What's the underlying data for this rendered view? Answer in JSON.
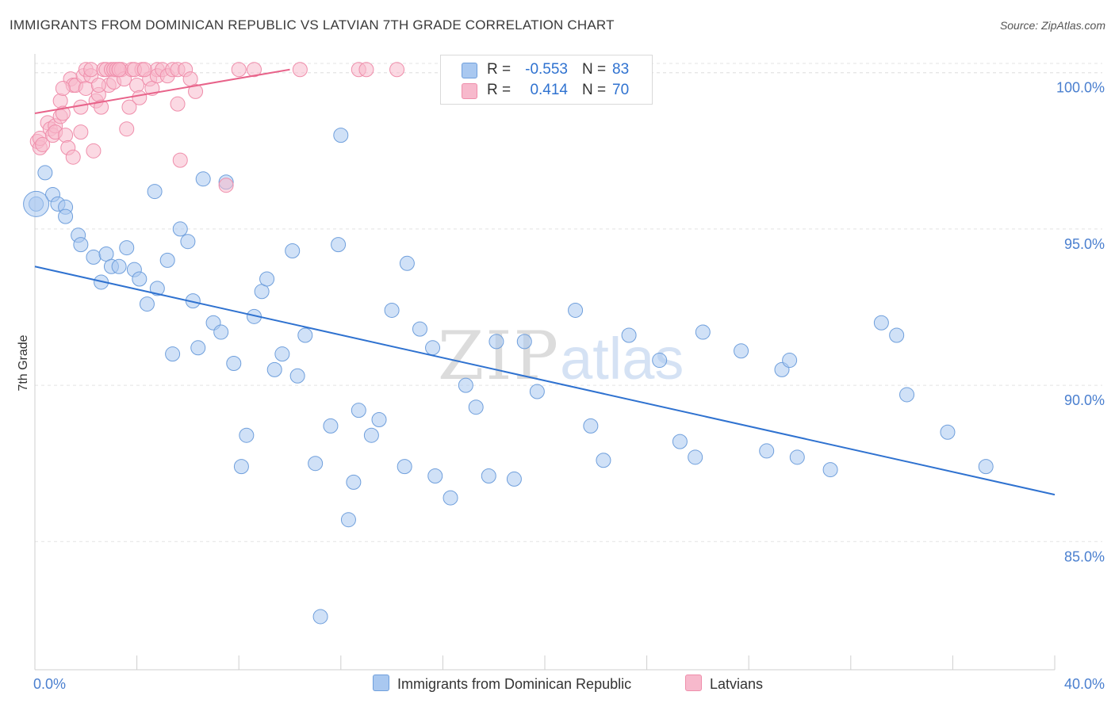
{
  "title": "IMMIGRANTS FROM DOMINICAN REPUBLIC VS LATVIAN 7TH GRADE CORRELATION CHART",
  "source": "Source: ZipAtlas.com",
  "watermark": {
    "zip": "ZIP",
    "atlas": "atlas"
  },
  "legend": {
    "rows": [
      {
        "r_label": "R =",
        "r_value": "-0.553",
        "n_label": "N =",
        "n_value": "83"
      },
      {
        "r_label": "R =",
        "r_value": "0.414",
        "n_label": "N =",
        "n_value": "70"
      }
    ]
  },
  "bottom_legend": [
    "Immigrants from Dominican Republic",
    "Latvians"
  ],
  "colors": {
    "blue_fill": "#a9c8f0",
    "blue_stroke": "#6f9fdc",
    "blue_line": "#2f72d0",
    "pink_fill": "#f7b9cc",
    "pink_stroke": "#ef8eab",
    "pink_line": "#e8638a",
    "axis_label": "#4a7fcf",
    "value_blue": "#2f72d0",
    "value_pink": "#e8638a"
  },
  "chart_data": {
    "type": "scatter",
    "title": "IMMIGRANTS FROM DOMINICAN REPUBLIC VS LATVIAN 7TH GRADE CORRELATION CHART",
    "xlabel": "",
    "ylabel": "7th Grade",
    "xlim": [
      0,
      40
    ],
    "ylim": [
      80.9,
      100.5
    ],
    "x_tick_labels": [
      "0.0%",
      "40.0%"
    ],
    "y_ticks": [
      85,
      90,
      95,
      100
    ],
    "y_tick_labels": [
      "85.0%",
      "90.0%",
      "95.0%",
      "100.0%"
    ],
    "grid": true,
    "legend_position": "top-center",
    "series": [
      {
        "name": "Immigrants from Dominican Republic",
        "color": "#a9c8f0",
        "trend": {
          "x": [
            0,
            40
          ],
          "y": [
            93.8,
            86.5
          ]
        },
        "points": [
          [
            0.05,
            95.8
          ],
          [
            0.4,
            96.8
          ],
          [
            0.7,
            96.1
          ],
          [
            0.9,
            95.8
          ],
          [
            1.2,
            95.7
          ],
          [
            1.2,
            95.4
          ],
          [
            1.7,
            94.8
          ],
          [
            1.8,
            94.5
          ],
          [
            2.3,
            94.1
          ],
          [
            2.6,
            93.3
          ],
          [
            2.8,
            94.2
          ],
          [
            3.0,
            93.8
          ],
          [
            3.3,
            93.8
          ],
          [
            3.6,
            94.4
          ],
          [
            3.9,
            93.7
          ],
          [
            4.1,
            93.4
          ],
          [
            4.4,
            92.6
          ],
          [
            4.7,
            96.2
          ],
          [
            4.8,
            93.1
          ],
          [
            5.2,
            94.0
          ],
          [
            5.4,
            91.0
          ],
          [
            5.7,
            95.0
          ],
          [
            6.0,
            94.6
          ],
          [
            6.2,
            92.7
          ],
          [
            6.4,
            91.2
          ],
          [
            6.6,
            96.6
          ],
          [
            7.0,
            92.0
          ],
          [
            7.3,
            91.7
          ],
          [
            7.5,
            96.5
          ],
          [
            7.8,
            90.7
          ],
          [
            8.1,
            87.4
          ],
          [
            8.3,
            88.4
          ],
          [
            8.6,
            92.2
          ],
          [
            8.9,
            93.0
          ],
          [
            9.1,
            93.4
          ],
          [
            9.4,
            90.5
          ],
          [
            9.7,
            91.0
          ],
          [
            10.1,
            94.3
          ],
          [
            10.3,
            90.3
          ],
          [
            10.6,
            91.6
          ],
          [
            11.0,
            87.5
          ],
          [
            11.6,
            88.7
          ],
          [
            11.2,
            82.6
          ],
          [
            11.9,
            94.5
          ],
          [
            12.0,
            98.0
          ],
          [
            12.3,
            85.7
          ],
          [
            12.7,
            89.2
          ],
          [
            12.5,
            86.9
          ],
          [
            13.2,
            88.4
          ],
          [
            13.5,
            88.9
          ],
          [
            14.0,
            92.4
          ],
          [
            14.6,
            93.9
          ],
          [
            14.5,
            87.4
          ],
          [
            15.1,
            91.8
          ],
          [
            15.6,
            91.2
          ],
          [
            15.7,
            87.1
          ],
          [
            16.3,
            86.4
          ],
          [
            16.9,
            90.0
          ],
          [
            17.3,
            89.3
          ],
          [
            17.8,
            87.1
          ],
          [
            18.1,
            91.4
          ],
          [
            18.8,
            87.0
          ],
          [
            19.2,
            91.4
          ],
          [
            19.7,
            89.8
          ],
          [
            21.2,
            92.4
          ],
          [
            21.8,
            88.7
          ],
          [
            22.3,
            87.6
          ],
          [
            23.3,
            91.6
          ],
          [
            24.5,
            90.8
          ],
          [
            25.3,
            88.2
          ],
          [
            25.9,
            87.7
          ],
          [
            26.2,
            91.7
          ],
          [
            27.7,
            91.1
          ],
          [
            28.7,
            87.9
          ],
          [
            29.3,
            90.5
          ],
          [
            29.6,
            90.8
          ],
          [
            29.9,
            87.7
          ],
          [
            31.2,
            87.3
          ],
          [
            33.2,
            92.0
          ],
          [
            33.8,
            91.6
          ],
          [
            34.2,
            89.7
          ],
          [
            35.8,
            88.5
          ],
          [
            37.3,
            87.4
          ]
        ]
      },
      {
        "name": "Latvians",
        "color": "#f7b9cc",
        "trend": {
          "x": [
            0,
            10
          ],
          "y": [
            98.7,
            100.1
          ]
        },
        "points": [
          [
            0.1,
            97.8
          ],
          [
            0.2,
            97.6
          ],
          [
            0.2,
            97.9
          ],
          [
            0.3,
            97.7
          ],
          [
            0.5,
            98.4
          ],
          [
            0.6,
            98.2
          ],
          [
            0.7,
            98.0
          ],
          [
            0.8,
            98.3
          ],
          [
            0.8,
            98.1
          ],
          [
            1.0,
            99.1
          ],
          [
            1.0,
            98.6
          ],
          [
            1.1,
            98.7
          ],
          [
            1.2,
            98.0
          ],
          [
            1.3,
            97.6
          ],
          [
            1.4,
            99.8
          ],
          [
            1.5,
            99.6
          ],
          [
            1.5,
            97.3
          ],
          [
            1.6,
            99.6
          ],
          [
            1.8,
            98.9
          ],
          [
            1.8,
            98.1
          ],
          [
            1.9,
            99.9
          ],
          [
            2.0,
            100.1
          ],
          [
            2.0,
            99.5
          ],
          [
            2.2,
            99.9
          ],
          [
            2.2,
            100.1
          ],
          [
            2.3,
            97.5
          ],
          [
            2.4,
            99.1
          ],
          [
            2.5,
            99.3
          ],
          [
            2.6,
            98.9
          ],
          [
            2.7,
            100.1
          ],
          [
            2.8,
            100.1
          ],
          [
            2.9,
            99.6
          ],
          [
            3.0,
            100.1
          ],
          [
            3.1,
            100.1
          ],
          [
            3.1,
            99.7
          ],
          [
            3.2,
            100.1
          ],
          [
            3.3,
            100.1
          ],
          [
            3.4,
            100.1
          ],
          [
            3.5,
            99.8
          ],
          [
            3.6,
            98.2
          ],
          [
            3.7,
            98.9
          ],
          [
            3.8,
            100.1
          ],
          [
            4.0,
            99.6
          ],
          [
            4.1,
            99.2
          ],
          [
            4.2,
            100.1
          ],
          [
            4.5,
            99.8
          ],
          [
            4.6,
            99.5
          ],
          [
            4.8,
            100.1
          ],
          [
            4.8,
            99.9
          ],
          [
            5.0,
            100.1
          ],
          [
            5.2,
            99.9
          ],
          [
            5.4,
            100.1
          ],
          [
            5.6,
            100.1
          ],
          [
            5.6,
            99.0
          ],
          [
            5.7,
            97.2
          ],
          [
            5.9,
            100.1
          ],
          [
            6.1,
            99.8
          ],
          [
            6.3,
            99.4
          ],
          [
            7.5,
            96.4
          ],
          [
            8.0,
            100.1
          ],
          [
            8.6,
            100.1
          ],
          [
            10.4,
            100.1
          ],
          [
            12.7,
            100.1
          ],
          [
            13.0,
            100.1
          ],
          [
            14.2,
            100.1
          ],
          [
            1.1,
            99.5
          ],
          [
            2.5,
            99.6
          ],
          [
            3.3,
            100.1
          ],
          [
            3.9,
            100.1
          ],
          [
            4.3,
            100.1
          ]
        ]
      }
    ]
  }
}
